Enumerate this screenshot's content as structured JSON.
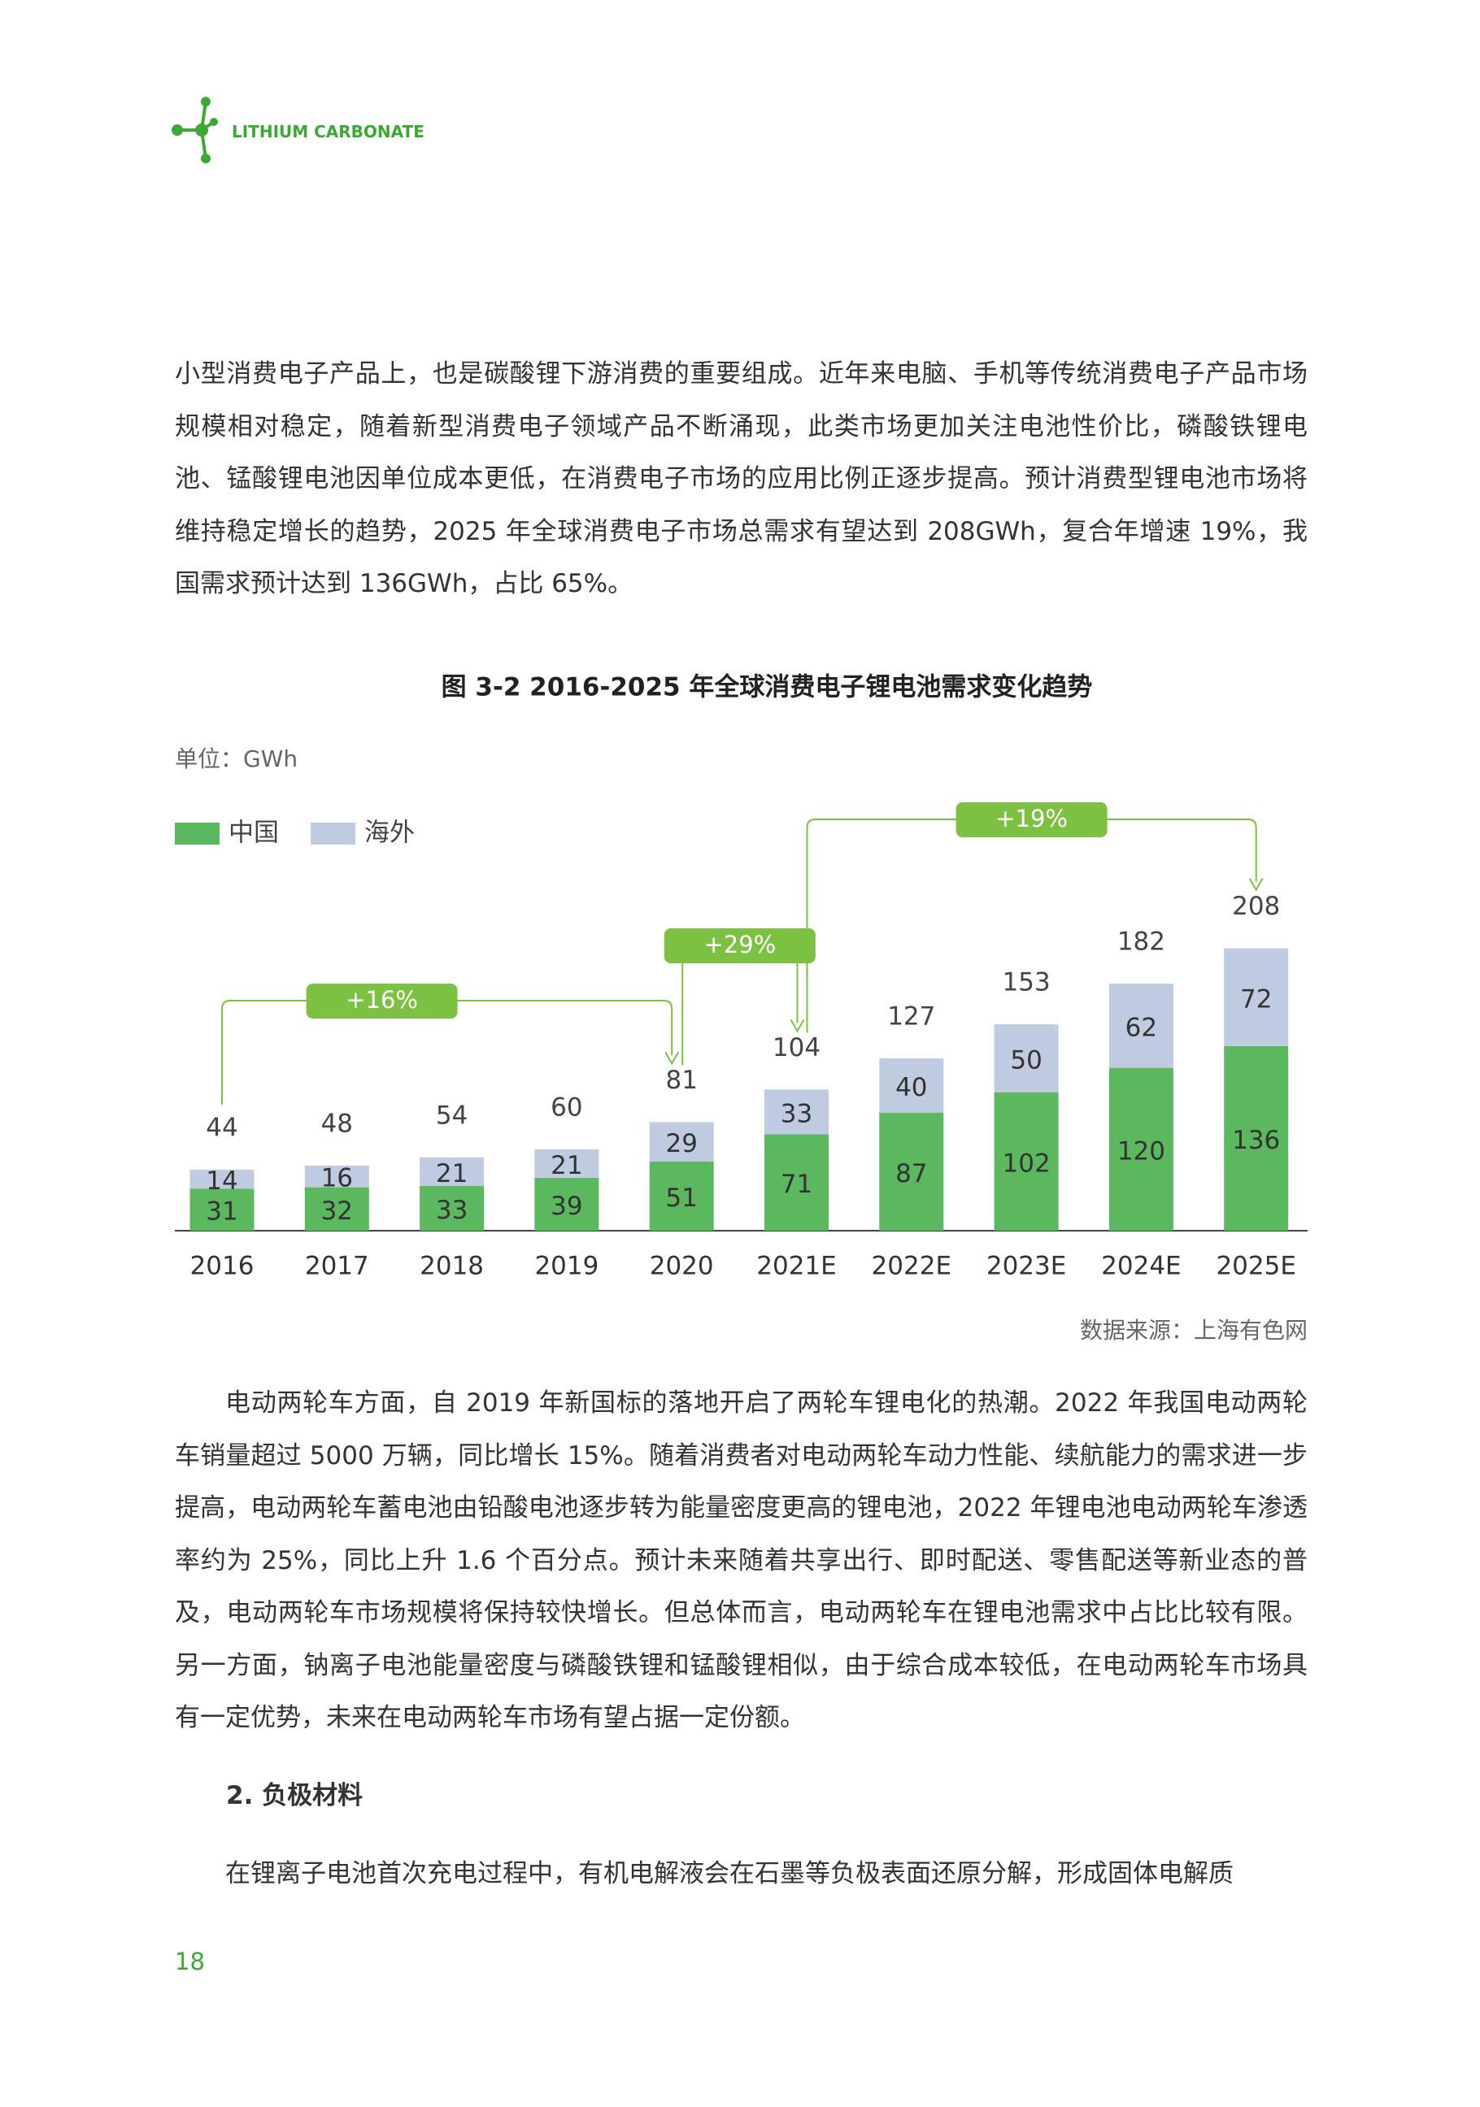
{
  "header": {
    "brand": "LITHIUM CARBONATE"
  },
  "paragraphs": [
    "小型消费电子产品上，也是碳酸锂下游消费的重要组成。近年来电脑、手机等传统消费电子产品市场规模相对稳定，随着新型消费电子领域产品不断涌现，此类市场更加关注电池性价比，磷酸铁锂电池、锰酸锂电池因单位成本更低，在消费电子市场的应用比例正逐步提高。预计消费型锂电池市场将维持稳定增长的趋势，2025 年全球消费电子市场总需求有望达到 208GWh，复合年增速 19%，我国需求预计达到 136GWh，占比 65%。",
    "电动两轮车方面，自 2019 年新国标的落地开启了两轮车锂电化的热潮。2022 年我国电动两轮车销量超过 5000 万辆，同比增长 15%。随着消费者对电动两轮车动力性能、续航能力的需求进一步提高，电动两轮车蓄电池由铅酸电池逐步转为能量密度更高的锂电池，2022 年锂电池电动两轮车渗透率约为 25%，同比上升 1.6 个百分点。预计未来随着共享出行、即时配送、零售配送等新业态的普及，电动两轮车市场规模将保持较快增长。但总体而言，电动两轮车在锂电池需求中占比比较有限。另一方面，钠离子电池能量密度与磷酸铁锂和锰酸锂相似，由于综合成本较低，在电动两轮车市场具有一定优势，未来在电动两轮车市场有望占据一定份额。"
  ],
  "section_heading": "2. 负极材料",
  "last_paragraph": "在锂离子电池首次充电过程中，有机电解液会在石墨等负极表面还原分解，形成固体电解质",
  "page_number": "18",
  "chart_data": {
    "type": "stacked_bar",
    "title": "图 3-2 2016-2025 年全球消费电子锂电池需求变化趋势",
    "unit": "单位：GWh",
    "source": "数据来源：上海有色网",
    "categories": [
      "2016",
      "2017",
      "2018",
      "2019",
      "2020",
      "2021E",
      "2022E",
      "2023E",
      "2024E",
      "2025E"
    ],
    "series": [
      {
        "name": "中国",
        "color": "#5cb85f",
        "values": [
          31,
          32,
          33,
          39,
          51,
          71,
          87,
          102,
          120,
          136
        ]
      },
      {
        "name": "海外",
        "color": "#bfcbe0",
        "values": [
          14,
          16,
          21,
          21,
          29,
          33,
          40,
          50,
          62,
          72
        ]
      }
    ],
    "totals": [
      44,
      48,
      54,
      60,
      81,
      104,
      127,
      153,
      182,
      208
    ],
    "growth_labels": [
      "+16%",
      "+29%",
      "+19%"
    ],
    "growth_color": "#7dc142"
  }
}
